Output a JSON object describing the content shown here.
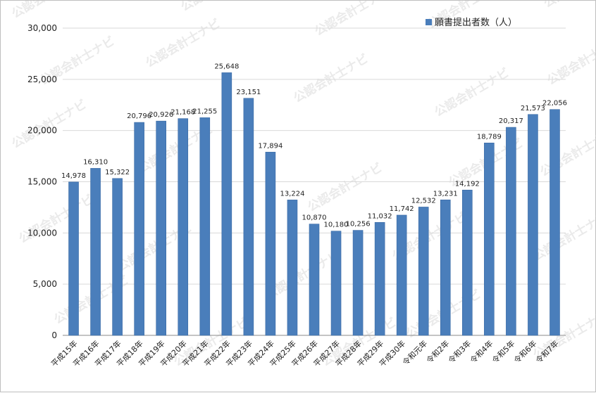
{
  "watermark_text": "公認会計士ナビ",
  "colors": {
    "bar": "#4a7ebb",
    "bar_edge": "#3a6aa5",
    "grid": "#d9d9d9",
    "axis": "#888888"
  },
  "chart_data": {
    "type": "bar",
    "title": "",
    "xlabel": "",
    "ylabel": "",
    "ylim": [
      0,
      30000
    ],
    "yticks": [
      "0",
      "5,000",
      "10,000",
      "15,000",
      "20,000",
      "25,000",
      "30,000"
    ],
    "grid": true,
    "legend_position": "top-right",
    "categories": [
      "平成15年",
      "平成16年",
      "平成17年",
      "平成18年",
      "平成19年",
      "平成20年",
      "平成21年",
      "平成22年",
      "平成23年",
      "平成24年",
      "平成25年",
      "平成26年",
      "平成27年",
      "平成28年",
      "平成29年",
      "平成30年",
      "令和元年",
      "令和2年",
      "令和3年",
      "令和4年",
      "令和5年",
      "令和6年",
      "令和7年"
    ],
    "series": [
      {
        "name": "願書提出者数（人）",
        "values": [
          14978,
          16310,
          15322,
          20796,
          20926,
          21168,
          21255,
          25648,
          23151,
          17894,
          13224,
          10870,
          10180,
          10256,
          11032,
          11742,
          12532,
          13231,
          14192,
          18789,
          20317,
          21573,
          22056
        ],
        "labels": [
          "14,978",
          "16,310",
          "15,322",
          "20,796",
          "20,926",
          "21,168",
          "21,255",
          "25,648",
          "23,151",
          "17,894",
          "13,224",
          "10,870",
          "10,180",
          "10,256",
          "11,032",
          "11,742",
          "12,532",
          "13,231",
          "14,192",
          "18,789",
          "20,317",
          "21,573",
          "22,056"
        ]
      }
    ]
  }
}
